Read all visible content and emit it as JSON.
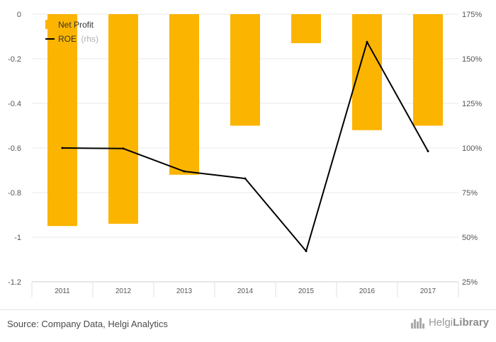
{
  "chart_data": {
    "type": "bar",
    "categories": [
      "2011",
      "2012",
      "2013",
      "2014",
      "2015",
      "2016",
      "2017"
    ],
    "series": [
      {
        "name": "Net Profit",
        "type": "bar",
        "axis": "left",
        "color": "#FBB400",
        "values": [
          -0.95,
          -0.94,
          -0.72,
          -0.5,
          -0.13,
          -0.52,
          -0.5
        ]
      },
      {
        "name": "ROE",
        "name_suffix": "(rhs)",
        "type": "line",
        "axis": "right",
        "color": "#000000",
        "values": [
          100,
          99.7,
          86.9,
          82.9,
          42.2,
          159.4,
          98.2
        ]
      }
    ],
    "y_left": {
      "ticks": [
        "0",
        "-0.2",
        "-0.4",
        "-0.6",
        "-0.8",
        "-1",
        "-1.2"
      ],
      "range": [
        -1.2,
        0
      ]
    },
    "y_right": {
      "ticks": [
        "175%",
        "150%",
        "125%",
        "100%",
        "75%",
        "50%",
        "25%"
      ],
      "range": [
        25,
        175
      ]
    },
    "legend_position": "top-left",
    "grid": true
  },
  "footer": {
    "source": "Source: Company Data, Helgi Analytics",
    "logo_light": "Helgi",
    "logo_bold": "Library"
  }
}
